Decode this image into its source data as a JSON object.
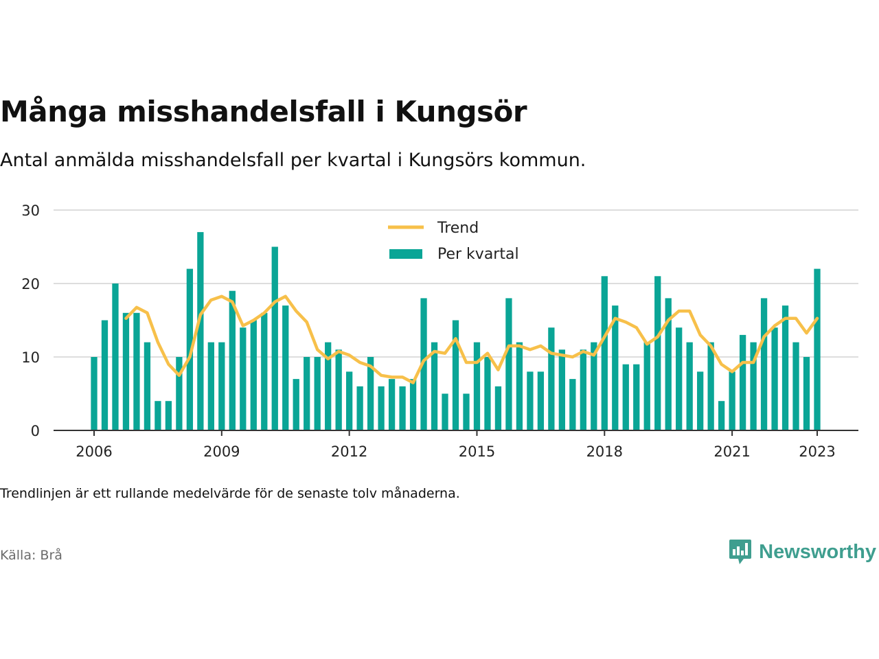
{
  "header": {
    "title": "Många misshandelsfall i Kungsör",
    "subtitle": "Antal anmälda misshandelsfall per kvartal i Kungsörs kommun."
  },
  "footer": {
    "note": "Trendlinjen är ett rullande medelvärde för de senaste tolv månaderna.",
    "source": "Källa: Brå",
    "brand": "Newsworthy",
    "brand_icon": "bar-chart-speech-bubble-icon"
  },
  "colors": {
    "bars": "#0aa596",
    "trend": "#f7c04a",
    "grid": "#dddddd",
    "axis": "#333333",
    "brand": "#3f9e8f"
  },
  "chart_data": {
    "type": "bar",
    "title": "Många misshandelsfall i Kungsör",
    "subtitle": "Antal anmälda misshandelsfall per kvartal i Kungsörs kommun.",
    "xlabel": "",
    "ylabel": "",
    "ylim": [
      0,
      30
    ],
    "yticks": [
      0,
      10,
      20,
      30
    ],
    "xticks": [
      "2006",
      "2009",
      "2012",
      "2015",
      "2018",
      "2021",
      "2023"
    ],
    "grid": true,
    "legend_position": "top-center",
    "x_start": "2006 Q1",
    "x_end": "2023 Q1",
    "series": [
      {
        "name": "Per kvartal",
        "type": "bar",
        "values": [
          10,
          15,
          20,
          16,
          16,
          12,
          4,
          4,
          10,
          22,
          27,
          12,
          12,
          19,
          14,
          15,
          16,
          25,
          17,
          7,
          10,
          10,
          12,
          11,
          8,
          6,
          10,
          6,
          7,
          6,
          7,
          18,
          12,
          5,
          15,
          5,
          12,
          10,
          6,
          18,
          12,
          8,
          8,
          14,
          11,
          7,
          11,
          12,
          21,
          17,
          9,
          9,
          12,
          21,
          18,
          14,
          12,
          8,
          12,
          4,
          8,
          13,
          12,
          18,
          14,
          17,
          12,
          10,
          22
        ]
      },
      {
        "name": "Trend",
        "type": "line",
        "values": [
          null,
          null,
          null,
          15.25,
          16.75,
          16.0,
          12.0,
          9.0,
          7.5,
          10.0,
          15.75,
          17.75,
          18.25,
          17.5,
          14.25,
          15.0,
          16.0,
          17.5,
          18.25,
          16.25,
          14.75,
          11.0,
          9.75,
          10.75,
          10.25,
          9.25,
          8.75,
          7.5,
          7.25,
          7.25,
          6.5,
          9.5,
          10.75,
          10.5,
          12.5,
          9.25,
          9.25,
          10.5,
          8.25,
          11.5,
          11.5,
          11.0,
          11.5,
          10.5,
          10.25,
          10.0,
          10.75,
          10.25,
          12.75,
          15.25,
          14.75,
          14.0,
          11.75,
          12.75,
          15.0,
          16.25,
          16.25,
          13.0,
          11.5,
          9.0,
          8.0,
          9.25,
          9.25,
          12.75,
          14.25,
          15.25,
          15.25,
          13.25,
          15.25
        ]
      }
    ]
  }
}
